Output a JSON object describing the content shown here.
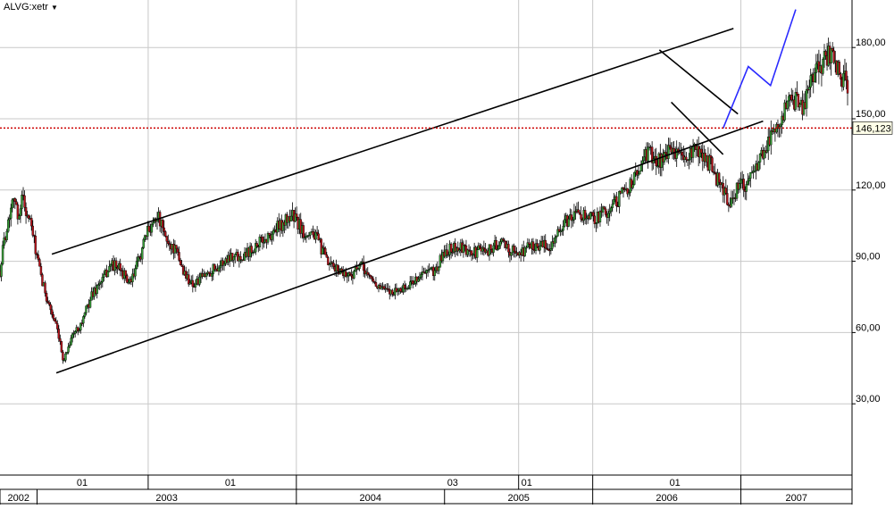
{
  "header": {
    "symbol": "ALVG:xetr",
    "dropdown_icon": "caret-down-icon"
  },
  "chart_data": {
    "type": "candlestick",
    "symbol": "ALVG:xetr",
    "y_axis_position": "right",
    "ylim": [
      0,
      200
    ],
    "y_ticks": [
      30,
      60,
      90,
      120,
      150,
      180
    ],
    "y_tick_labels": [
      "30,00",
      "60,00",
      "90,00",
      "120,00",
      "150,00",
      "180,00"
    ],
    "xlim": [
      2002.0,
      2007.75
    ],
    "month_ticks": [
      {
        "t": 2003.0,
        "label": "01"
      },
      {
        "t": 2004.0,
        "label": "01"
      },
      {
        "t": 2005.5,
        "label": "03"
      },
      {
        "t": 2006.0,
        "label": "01"
      },
      {
        "t": 2007.0,
        "label": "01"
      }
    ],
    "year_segments": [
      {
        "start": 2002.0,
        "end": 2002.25,
        "label": "2002"
      },
      {
        "start": 2002.25,
        "end": 2004.0,
        "label": "2003"
      },
      {
        "start": 2004.0,
        "end": 2005.0,
        "label": "2004"
      },
      {
        "start": 2005.0,
        "end": 2006.0,
        "label": "2005"
      },
      {
        "start": 2006.0,
        "end": 2007.0,
        "label": "2006"
      },
      {
        "start": 2007.0,
        "end": 2007.75,
        "label": "2007"
      }
    ],
    "current_price": 146.123,
    "current_price_label": "146,123",
    "price_path": [
      [
        2002.0,
        86
      ],
      [
        2002.03,
        100
      ],
      [
        2002.06,
        108
      ],
      [
        2002.09,
        120
      ],
      [
        2002.12,
        108
      ],
      [
        2002.15,
        118
      ],
      [
        2002.18,
        110
      ],
      [
        2002.21,
        105
      ],
      [
        2002.24,
        95
      ],
      [
        2002.28,
        82
      ],
      [
        2002.33,
        72
      ],
      [
        2002.38,
        62
      ],
      [
        2002.43,
        48
      ],
      [
        2002.48,
        58
      ],
      [
        2002.55,
        64
      ],
      [
        2002.62,
        76
      ],
      [
        2002.7,
        83
      ],
      [
        2002.75,
        89
      ],
      [
        2002.82,
        86
      ],
      [
        2002.88,
        80
      ],
      [
        2003.0,
        103
      ],
      [
        2003.06,
        110
      ],
      [
        2003.12,
        99
      ],
      [
        2003.18,
        95
      ],
      [
        2003.25,
        84
      ],
      [
        2003.31,
        80
      ],
      [
        2003.38,
        84
      ],
      [
        2003.44,
        87
      ],
      [
        2003.5,
        89
      ],
      [
        2003.56,
        93
      ],
      [
        2003.62,
        92
      ],
      [
        2003.69,
        95
      ],
      [
        2003.75,
        98
      ],
      [
        2003.81,
        100
      ],
      [
        2003.87,
        104
      ],
      [
        2003.93,
        107
      ],
      [
        2003.97,
        110
      ],
      [
        2004.05,
        102
      ],
      [
        2004.1,
        103
      ],
      [
        2004.15,
        98
      ],
      [
        2004.22,
        88
      ],
      [
        2004.3,
        86
      ],
      [
        2004.36,
        84
      ],
      [
        2004.44,
        88
      ],
      [
        2004.5,
        83
      ],
      [
        2004.56,
        79
      ],
      [
        2004.62,
        77
      ],
      [
        2004.69,
        78
      ],
      [
        2004.75,
        79
      ],
      [
        2004.81,
        83
      ],
      [
        2004.87,
        85
      ],
      [
        2004.94,
        86
      ],
      [
        2005.0,
        94
      ],
      [
        2005.06,
        96
      ],
      [
        2005.12,
        95
      ],
      [
        2005.18,
        93
      ],
      [
        2005.25,
        95
      ],
      [
        2005.31,
        95
      ],
      [
        2005.37,
        98
      ],
      [
        2005.44,
        95
      ],
      [
        2005.5,
        93
      ],
      [
        2005.56,
        96
      ],
      [
        2005.62,
        97
      ],
      [
        2005.69,
        96
      ],
      [
        2005.75,
        100
      ],
      [
        2005.81,
        106
      ],
      [
        2005.87,
        109
      ],
      [
        2005.93,
        110
      ],
      [
        2006.0,
        108
      ],
      [
        2006.06,
        110
      ],
      [
        2006.12,
        112
      ],
      [
        2006.19,
        118
      ],
      [
        2006.25,
        122
      ],
      [
        2006.31,
        128
      ],
      [
        2006.37,
        136
      ],
      [
        2006.44,
        132
      ],
      [
        2006.5,
        135
      ],
      [
        2006.56,
        137
      ],
      [
        2006.62,
        132
      ],
      [
        2006.68,
        136
      ],
      [
        2006.75,
        134
      ],
      [
        2006.81,
        129
      ],
      [
        2006.87,
        120
      ],
      [
        2006.93,
        115
      ],
      [
        2006.97,
        120
      ],
      [
        2007.02,
        122
      ],
      [
        2007.06,
        124
      ],
      [
        2007.12,
        133
      ],
      [
        2007.18,
        140
      ],
      [
        2007.24,
        148
      ],
      [
        2007.3,
        154
      ],
      [
        2007.36,
        158
      ],
      [
        2007.42,
        153
      ],
      [
        2007.48,
        168
      ],
      [
        2007.54,
        172
      ],
      [
        2007.6,
        178
      ],
      [
        2007.66,
        170
      ],
      [
        2007.72,
        164
      ]
    ],
    "trendlines": [
      {
        "name": "channel-upper-line",
        "color": "#000000",
        "points": [
          [
            2002.35,
            93
          ],
          [
            2006.95,
            188
          ]
        ]
      },
      {
        "name": "channel-lower-line",
        "color": "#000000",
        "points": [
          [
            2002.38,
            43
          ],
          [
            2007.15,
            149
          ]
        ]
      },
      {
        "name": "wedge-upper-line",
        "color": "#000000",
        "points": [
          [
            2006.45,
            179
          ],
          [
            2006.98,
            152
          ]
        ]
      },
      {
        "name": "wedge-lower-line",
        "color": "#000000",
        "points": [
          [
            2006.53,
            157
          ],
          [
            2006.88,
            135
          ]
        ]
      },
      {
        "name": "projection-line",
        "color": "#2a2aff",
        "points": [
          [
            2006.88,
            146
          ],
          [
            2007.05,
            172
          ],
          [
            2007.2,
            164
          ],
          [
            2007.37,
            196
          ]
        ]
      }
    ],
    "colors": {
      "candle_up": "#39a039",
      "candle_down": "#b8141c",
      "current_price_line": "#cc0000",
      "grid": "#c8c8c8",
      "axis": "#000000"
    }
  }
}
